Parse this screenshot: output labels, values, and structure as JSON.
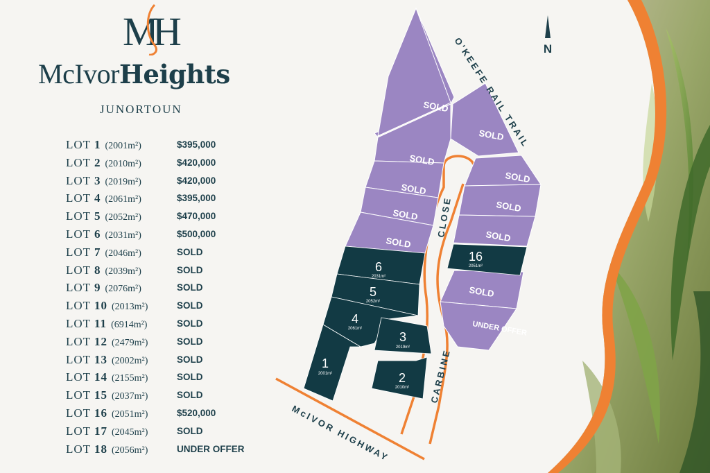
{
  "logo": {
    "monogram": "MH",
    "brand_light": "McIvor",
    "brand_bold": "Heights"
  },
  "location": "JUNORTOUN",
  "lots": [
    {
      "label": "LOT",
      "num": "1",
      "area": "(2001m²)",
      "price": "$395,000"
    },
    {
      "label": "LOT",
      "num": "2",
      "area": "(2010m²)",
      "price": "$420,000"
    },
    {
      "label": "LOT",
      "num": "3",
      "area": "(2019m²)",
      "price": "$420,000"
    },
    {
      "label": "LOT",
      "num": "4",
      "area": "(2061m²)",
      "price": "$395,000"
    },
    {
      "label": "LOT",
      "num": "5",
      "area": "(2052m²)",
      "price": "$470,000"
    },
    {
      "label": "LOT",
      "num": "6",
      "area": "(2031m²)",
      "price": "$500,000"
    },
    {
      "label": "LOT",
      "num": "7",
      "area": "(2046m²)",
      "price": "SOLD"
    },
    {
      "label": "LOT",
      "num": "8",
      "area": "(2039m²)",
      "price": "SOLD"
    },
    {
      "label": "LOT",
      "num": "9",
      "area": "(2076m²)",
      "price": "SOLD"
    },
    {
      "label": "LOT",
      "num": "10",
      "area": "(2013m²)",
      "price": "SOLD"
    },
    {
      "label": "LOT",
      "num": "11",
      "area": "(6914m²)",
      "price": "SOLD"
    },
    {
      "label": "LOT",
      "num": "12",
      "area": "(2479m²)",
      "price": "SOLD"
    },
    {
      "label": "LOT",
      "num": "13",
      "area": "(2002m²)",
      "price": "SOLD"
    },
    {
      "label": "LOT",
      "num": "14",
      "area": "(2155m²)",
      "price": "SOLD"
    },
    {
      "label": "LOT",
      "num": "15",
      "area": "(2037m²)",
      "price": "SOLD"
    },
    {
      "label": "LOT",
      "num": "16",
      "area": "(2051m²)",
      "price": "$520,000"
    },
    {
      "label": "LOT",
      "num": "17",
      "area": "(2045m²)",
      "price": "SOLD"
    },
    {
      "label": "LOT",
      "num": "18",
      "area": "(2056m²)",
      "price": "UNDER OFFER"
    }
  ],
  "map": {
    "north": "N",
    "roads": {
      "rail_trail": "O'KEEFE RAIL TRAIL",
      "close": "CLOSE",
      "carbine": "CARBINE",
      "highway": "McIVOR HIGHWAY"
    },
    "sold_label": "SOLD",
    "under_offer_label": "UNDER OFFER",
    "plots": {
      "lot1": {
        "num": "1",
        "area": "2001m²"
      },
      "lot2": {
        "num": "2",
        "area": "2010m²"
      },
      "lot3": {
        "num": "3",
        "area": "2019m²"
      },
      "lot4": {
        "num": "4",
        "area": "2061m²"
      },
      "lot5": {
        "num": "5",
        "area": "2052m²"
      },
      "lot6": {
        "num": "6",
        "area": "2031m²"
      },
      "lot16": {
        "num": "16",
        "area": "2051m²"
      }
    }
  },
  "colors": {
    "navy": "#1d3f4a",
    "sold_purple": "#9b86c2",
    "available_teal": "#123a44",
    "road_orange": "#ef8133",
    "leaf_green": "#6f8f3a"
  }
}
